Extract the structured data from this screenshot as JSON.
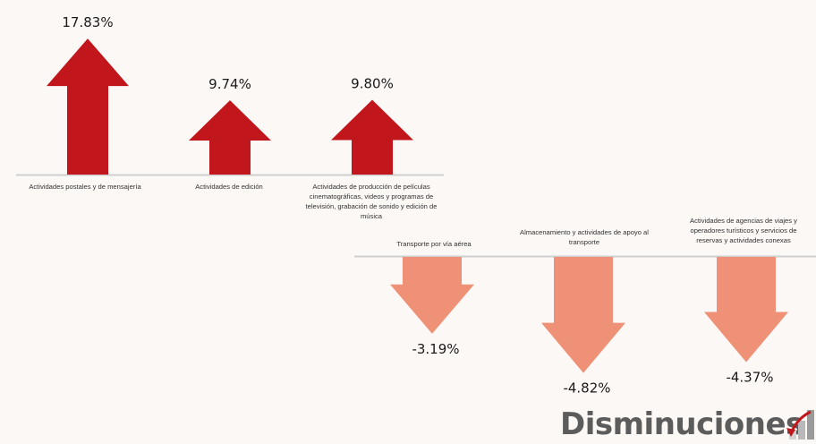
{
  "chart_data": [
    {
      "type": "bar",
      "categories": [
        "Actividades postales y de mensajería",
        "Actividades de edición",
        "Actividades de producción de películas cinematográficas, videos y programas de televisión, grabación de sonido y edición de música"
      ],
      "values": [
        17.83,
        9.74,
        9.8
      ],
      "value_labels": [
        "17.83%",
        "9.74%",
        "9.80%"
      ],
      "color": "#c1161b",
      "marker": "up-arrow"
    },
    {
      "type": "bar",
      "title": "Disminuciones",
      "categories": [
        "Transporte por vía aérea",
        "Almacenamiento y actividades de apoyo al transporte",
        "Actividades de agencias de viajes y operadores turísticos y servicios de reservas y actividades conexas"
      ],
      "values": [
        -3.19,
        -4.82,
        -4.37
      ],
      "value_labels": [
        "-3.19%",
        "-4.82%",
        "-4.37%"
      ],
      "color": "#ef9176",
      "marker": "down-arrow"
    }
  ],
  "icons": {
    "trend": "declining-trend-icon",
    "trend_color": "#c1161b"
  }
}
